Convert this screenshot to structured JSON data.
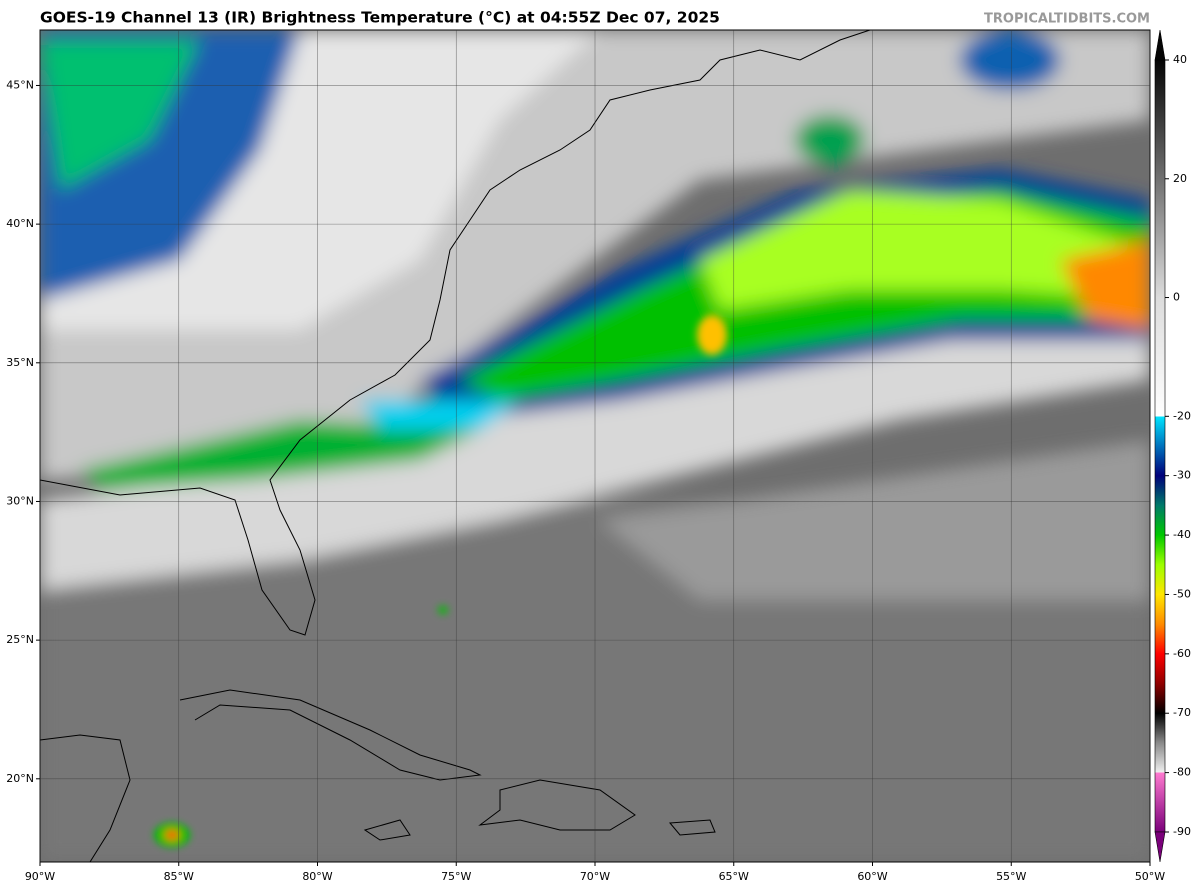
{
  "header": {
    "title": "GOES-19 Channel 13 (IR) Brightness Temperature (°C) at 04:55Z Dec 07, 2025",
    "credit": "TROPICALTIDBITS.COM"
  },
  "map": {
    "xlim": [
      -90,
      -50
    ],
    "ylim": [
      17,
      47
    ],
    "lon_ticks": [
      {
        "value": -90,
        "label": "90°W"
      },
      {
        "value": -85,
        "label": "85°W"
      },
      {
        "value": -80,
        "label": "80°W"
      },
      {
        "value": -75,
        "label": "75°W"
      },
      {
        "value": -70,
        "label": "70°W"
      },
      {
        "value": -65,
        "label": "65°W"
      },
      {
        "value": -60,
        "label": "60°W"
      },
      {
        "value": -55,
        "label": "55°W"
      },
      {
        "value": -50,
        "label": "50°W"
      }
    ],
    "lat_ticks": [
      {
        "value": 20,
        "label": "20°N"
      },
      {
        "value": 25,
        "label": "25°N"
      },
      {
        "value": 30,
        "label": "30°N"
      },
      {
        "value": 35,
        "label": "35°N"
      },
      {
        "value": 40,
        "label": "40°N"
      },
      {
        "value": 45,
        "label": "45°N"
      }
    ]
  },
  "colorbar": {
    "lim": [
      -90,
      40
    ],
    "ticks": [
      40,
      20,
      0,
      -20,
      -30,
      -40,
      -50,
      -60,
      -70,
      -80,
      -90
    ]
  }
}
